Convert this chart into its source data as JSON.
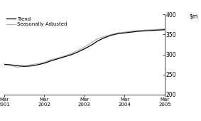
{
  "ylim": [
    200,
    400
  ],
  "yticks": [
    200,
    250,
    300,
    350,
    400
  ],
  "xtick_labels": [
    "Mar\n2001",
    "Mar\n2002",
    "Mar\n2003",
    "Mar\n2004",
    "Mar\n2005"
  ],
  "xtick_positions": [
    0,
    4,
    8,
    12,
    16
  ],
  "trend_color": "#000000",
  "seasonal_color": "#b0b0b0",
  "legend_labels": [
    "Trend",
    "Seasonally Adjusted"
  ],
  "trend_y": [
    275,
    274,
    272,
    270,
    271,
    274,
    278,
    284,
    289,
    294,
    299,
    306,
    314,
    323,
    334,
    342,
    348,
    352,
    354,
    356,
    358,
    359,
    360,
    361,
    362
  ],
  "seasonal_y": [
    276,
    273,
    268,
    271,
    274,
    277,
    280,
    287,
    291,
    296,
    302,
    310,
    318,
    329,
    340,
    345,
    350,
    354,
    356,
    358,
    360,
    361,
    362,
    363,
    364
  ],
  "x_max": 24
}
